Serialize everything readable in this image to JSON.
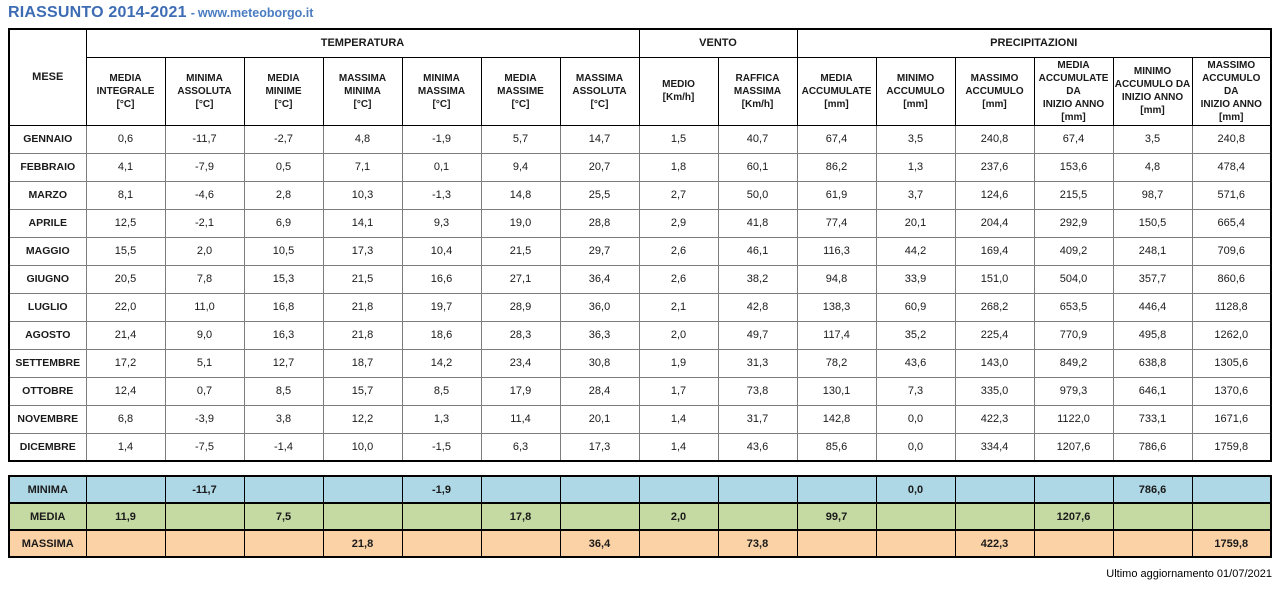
{
  "page": {
    "title": "RIASSUNTO 2014-2021",
    "separator": "-",
    "site": "www.meteoborgo.it",
    "footer": "Ultimo aggiornamento 01/07/2021"
  },
  "colors": {
    "title_blue": "#3d6cb4",
    "site_blue": "#4a7cc2",
    "summary_minima_bg": "#afd8e6",
    "summary_media_bg": "#c5d9a2",
    "summary_massima_bg": "#fbd2a6",
    "grid_gray": "#7d7d7d",
    "border_black": "#000000"
  },
  "table": {
    "corner_header": "MESE",
    "groups": [
      {
        "label": "TEMPERATURA",
        "span": 7
      },
      {
        "label": "VENTO",
        "span": 2
      },
      {
        "label": "PRECIPITAZIONI",
        "span": 6
      }
    ],
    "columns": [
      "MEDIA\nINTEGRALE\n[°C]",
      "MINIMA\nASSOLUTA\n[°C]",
      "MEDIA\nMINIME\n[°C]",
      "MASSIMA\nMINIMA\n[°C]",
      "MINIMA\nMASSIMA\n[°C]",
      "MEDIA\nMASSIME\n[°C]",
      "MASSIMA\nASSOLUTA\n[°C]",
      "MEDIO\n[Km/h]",
      "RAFFICA\nMASSIMA\n[Km/h]",
      "MEDIA\nACCUMULATE\n[mm]",
      "MINIMO\nACCUMULO [mm]",
      "MASSIMO\nACCUMULO [mm]",
      "MEDIA\nACCUMULATE DA\nINIZIO ANNO\n[mm]",
      "MINIMO\nACCUMULO DA\nINIZIO ANNO\n[mm]",
      "MASSIMO\nACCUMULO DA\nINIZIO ANNO\n[mm]"
    ],
    "months": [
      {
        "name": "GENNAIO",
        "values": [
          "0,6",
          "-11,7",
          "-2,7",
          "4,8",
          "-1,9",
          "5,7",
          "14,7",
          "1,5",
          "40,7",
          "67,4",
          "3,5",
          "240,8",
          "67,4",
          "3,5",
          "240,8"
        ]
      },
      {
        "name": "FEBBRAIO",
        "values": [
          "4,1",
          "-7,9",
          "0,5",
          "7,1",
          "0,1",
          "9,4",
          "20,7",
          "1,8",
          "60,1",
          "86,2",
          "1,3",
          "237,6",
          "153,6",
          "4,8",
          "478,4"
        ]
      },
      {
        "name": "MARZO",
        "values": [
          "8,1",
          "-4,6",
          "2,8",
          "10,3",
          "-1,3",
          "14,8",
          "25,5",
          "2,7",
          "50,0",
          "61,9",
          "3,7",
          "124,6",
          "215,5",
          "98,7",
          "571,6"
        ]
      },
      {
        "name": "APRILE",
        "values": [
          "12,5",
          "-2,1",
          "6,9",
          "14,1",
          "9,3",
          "19,0",
          "28,8",
          "2,9",
          "41,8",
          "77,4",
          "20,1",
          "204,4",
          "292,9",
          "150,5",
          "665,4"
        ]
      },
      {
        "name": "MAGGIO",
        "values": [
          "15,5",
          "2,0",
          "10,5",
          "17,3",
          "10,4",
          "21,5",
          "29,7",
          "2,6",
          "46,1",
          "116,3",
          "44,2",
          "169,4",
          "409,2",
          "248,1",
          "709,6"
        ]
      },
      {
        "name": "GIUGNO",
        "values": [
          "20,5",
          "7,8",
          "15,3",
          "21,5",
          "16,6",
          "27,1",
          "36,4",
          "2,6",
          "38,2",
          "94,8",
          "33,9",
          "151,0",
          "504,0",
          "357,7",
          "860,6"
        ]
      },
      {
        "name": "LUGLIO",
        "values": [
          "22,0",
          "11,0",
          "16,8",
          "21,8",
          "19,7",
          "28,9",
          "36,0",
          "2,1",
          "42,8",
          "138,3",
          "60,9",
          "268,2",
          "653,5",
          "446,4",
          "1128,8"
        ]
      },
      {
        "name": "AGOSTO",
        "values": [
          "21,4",
          "9,0",
          "16,3",
          "21,8",
          "18,6",
          "28,3",
          "36,3",
          "2,0",
          "49,7",
          "117,4",
          "35,2",
          "225,4",
          "770,9",
          "495,8",
          "1262,0"
        ]
      },
      {
        "name": "SETTEMBRE",
        "values": [
          "17,2",
          "5,1",
          "12,7",
          "18,7",
          "14,2",
          "23,4",
          "30,8",
          "1,9",
          "31,3",
          "78,2",
          "43,6",
          "143,0",
          "849,2",
          "638,8",
          "1305,6"
        ]
      },
      {
        "name": "OTTOBRE",
        "values": [
          "12,4",
          "0,7",
          "8,5",
          "15,7",
          "8,5",
          "17,9",
          "28,4",
          "1,7",
          "73,8",
          "130,1",
          "7,3",
          "335,0",
          "979,3",
          "646,1",
          "1370,6"
        ]
      },
      {
        "name": "NOVEMBRE",
        "values": [
          "6,8",
          "-3,9",
          "3,8",
          "12,2",
          "1,3",
          "11,4",
          "20,1",
          "1,4",
          "31,7",
          "142,8",
          "0,0",
          "422,3",
          "1122,0",
          "733,1",
          "1671,6"
        ]
      },
      {
        "name": "DICEMBRE",
        "values": [
          "1,4",
          "-7,5",
          "-1,4",
          "10,0",
          "-1,5",
          "6,3",
          "17,3",
          "1,4",
          "43,6",
          "85,6",
          "0,0",
          "334,4",
          "1207,6",
          "786,6",
          "1759,8"
        ]
      }
    ]
  },
  "summary": {
    "rows": [
      {
        "label": "MINIMA",
        "key": "minima",
        "values": [
          "",
          "-11,7",
          "",
          "",
          "-1,9",
          "",
          "",
          "",
          "",
          "",
          "0,0",
          "",
          "",
          "786,6",
          ""
        ]
      },
      {
        "label": "MEDIA",
        "key": "media",
        "values": [
          "11,9",
          "",
          "7,5",
          "",
          "",
          "17,8",
          "",
          "2,0",
          "",
          "99,7",
          "",
          "",
          "1207,6",
          "",
          ""
        ]
      },
      {
        "label": "MASSIMA",
        "key": "massima",
        "values": [
          "",
          "",
          "",
          "21,8",
          "",
          "",
          "36,4",
          "",
          "73,8",
          "",
          "",
          "422,3",
          "",
          "",
          "1759,8"
        ]
      }
    ]
  }
}
